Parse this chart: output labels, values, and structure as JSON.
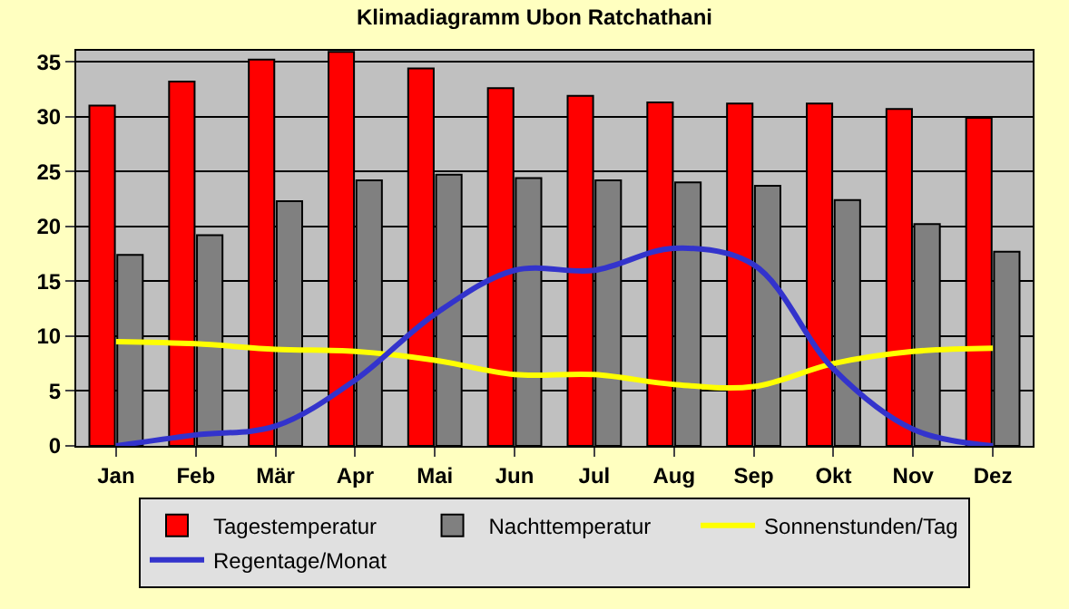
{
  "chart_data": {
    "type": "bar",
    "title": "Klimadiagramm Ubon Ratchathani",
    "categories": [
      "Jan",
      "Feb",
      "Mär",
      "Apr",
      "Mai",
      "Jun",
      "Jul",
      "Aug",
      "Sep",
      "Okt",
      "Nov",
      "Dez"
    ],
    "series": [
      {
        "name": "Tagestemperatur",
        "color": "#ff0000",
        "values": [
          31.0,
          33.2,
          35.2,
          35.9,
          34.4,
          32.6,
          31.9,
          31.3,
          31.2,
          31.2,
          30.7,
          29.9
        ]
      },
      {
        "name": "Nachttemperatur",
        "color": "#808080",
        "values": [
          17.4,
          19.2,
          22.3,
          24.2,
          24.7,
          24.4,
          24.2,
          24.0,
          23.7,
          22.4,
          20.2,
          17.7
        ]
      },
      {
        "name": "Sonnenstunden/Tag",
        "type": "line",
        "color": "#ffff00",
        "values": [
          9.5,
          9.3,
          8.8,
          8.6,
          7.8,
          6.5,
          6.5,
          5.6,
          5.4,
          7.5,
          8.6,
          8.9
        ]
      },
      {
        "name": "Regentage/Monat",
        "type": "line",
        "color": "#3333cc",
        "values": [
          0.0,
          1.0,
          1.8,
          6.0,
          12.0,
          16.0,
          16.0,
          18.0,
          16.5,
          7.0,
          1.5,
          0.0
        ]
      }
    ],
    "ylim": [
      0,
      36
    ],
    "yticks": [
      0,
      5,
      10,
      15,
      20,
      25,
      30,
      35
    ],
    "grid": "y",
    "legend": "bottom"
  }
}
